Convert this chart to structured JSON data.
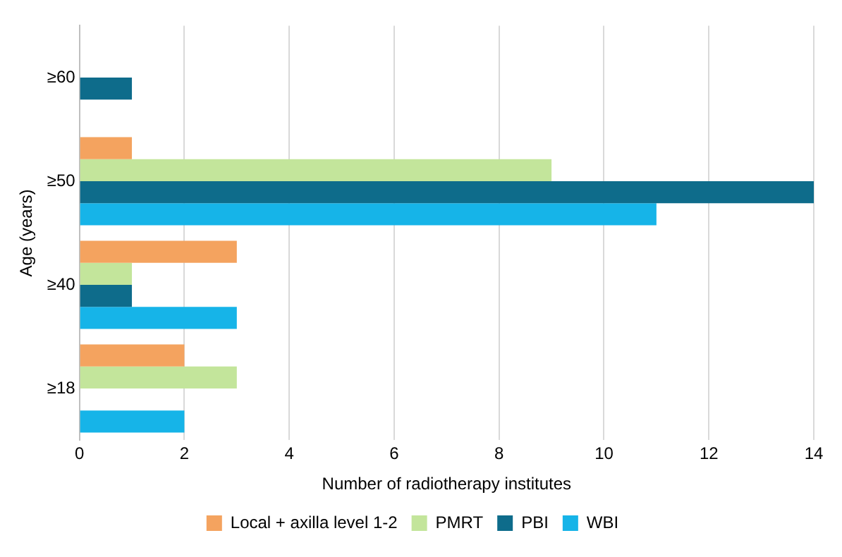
{
  "chart_data": {
    "type": "bar",
    "orientation": "horizontal",
    "categories": [
      "≥60",
      "≥50",
      "≥40",
      "≥18"
    ],
    "series": [
      {
        "name": "Local + axilla level 1-2",
        "color": "#f4a35f",
        "values": [
          0,
          1,
          3,
          2
        ]
      },
      {
        "name": "PMRT",
        "color": "#c3e59b",
        "values": [
          0,
          9,
          1,
          3
        ]
      },
      {
        "name": "PBI",
        "color": "#0e6c8b",
        "values": [
          1,
          14,
          1,
          0
        ]
      },
      {
        "name": "WBI",
        "color": "#16b4e8",
        "values": [
          0,
          11,
          3,
          2
        ]
      }
    ],
    "xlabel": "Number of radiotherapy institutes",
    "ylabel": "Age (years)",
    "xlim": [
      0,
      14
    ],
    "xticks": [
      0,
      2,
      4,
      6,
      8,
      10,
      12,
      14
    ],
    "grid": "x",
    "legend": "bottom"
  }
}
